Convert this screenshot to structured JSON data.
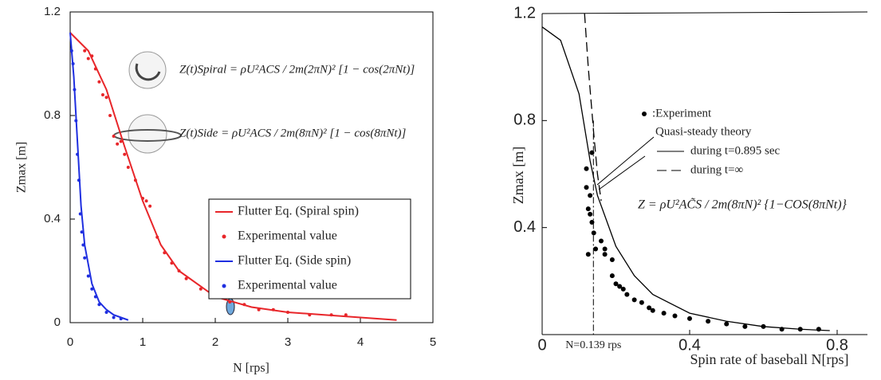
{
  "chart_data": [
    {
      "type": "line",
      "xlabel": "N [rps]",
      "ylabel": "Zmax [m]",
      "xlim": [
        0,
        5
      ],
      "ylim": [
        0,
        1.2
      ],
      "xticks": [
        0,
        1,
        2,
        3,
        4,
        5
      ],
      "yticks": [
        0,
        0.4,
        0.8,
        1.2
      ],
      "annotations": [
        "Z(t)Spiral = ρU²ACS / 2m(2πN)² [1 − cos(2πNt)]",
        "Z(t)Side = ρU²ACS / 2m(8πN)² [1 − cos(8πNt)]"
      ],
      "series": [
        {
          "name": "Flutter Eq. (Spiral spin)",
          "mode": "line",
          "color": "#e8262a",
          "x": [
            0,
            0.25,
            0.5,
            0.75,
            1,
            1.25,
            1.5,
            2,
            2.5,
            3,
            3.5,
            4,
            4.5
          ],
          "values": [
            1.12,
            1.05,
            0.9,
            0.68,
            0.47,
            0.3,
            0.2,
            0.1,
            0.06,
            0.04,
            0.03,
            0.02,
            0.01
          ]
        },
        {
          "name": "Experimental value",
          "mode": "markers",
          "color": "#e8262a",
          "x": [
            0.2,
            0.25,
            0.3,
            0.35,
            0.4,
            0.45,
            0.5,
            0.55,
            0.6,
            0.65,
            0.7,
            0.75,
            0.8,
            0.9,
            1.0,
            1.05,
            1.1,
            1.2,
            1.3,
            1.4,
            1.5,
            1.6,
            1.8,
            2.0,
            2.2,
            2.4,
            2.6,
            2.8,
            3.0,
            3.3,
            3.6,
            3.8
          ],
          "values": [
            1.05,
            1.02,
            1.03,
            0.98,
            0.93,
            0.88,
            0.87,
            0.8,
            0.72,
            0.69,
            0.7,
            0.65,
            0.6,
            0.55,
            0.48,
            0.47,
            0.45,
            0.33,
            0.27,
            0.23,
            0.2,
            0.17,
            0.13,
            0.1,
            0.08,
            0.07,
            0.05,
            0.05,
            0.04,
            0.03,
            0.03,
            0.03
          ]
        },
        {
          "name": "Flutter Eq. (Side spin)",
          "mode": "line",
          "color": "#1f2fe0",
          "x": [
            0,
            0.05,
            0.1,
            0.15,
            0.2,
            0.3,
            0.4,
            0.5,
            0.6,
            0.8
          ],
          "values": [
            1.12,
            0.95,
            0.7,
            0.45,
            0.3,
            0.15,
            0.08,
            0.05,
            0.03,
            0.01
          ]
        },
        {
          "name": "Experimental value",
          "mode": "markers",
          "color": "#1f2fe0",
          "x": [
            0.02,
            0.04,
            0.06,
            0.08,
            0.1,
            0.12,
            0.14,
            0.16,
            0.18,
            0.2,
            0.25,
            0.3,
            0.35,
            0.4,
            0.5,
            0.6,
            0.7
          ],
          "values": [
            1.05,
            1.0,
            0.9,
            0.78,
            0.65,
            0.55,
            0.42,
            0.35,
            0.3,
            0.25,
            0.18,
            0.13,
            0.1,
            0.07,
            0.04,
            0.02,
            0.015
          ]
        }
      ]
    },
    {
      "type": "line",
      "xlabel": "Spin rate of baseball N[rps]",
      "ylabel": "Zmax [m]",
      "xlim": [
        0,
        0.8
      ],
      "ylim": [
        0,
        1.2
      ],
      "xticks": [
        0,
        0.4,
        0.8
      ],
      "yticks": [
        0.4,
        0.8,
        1.2
      ],
      "legend_title": "Quasi-steady theory",
      "annotations": [
        "Z = ρU²AC̃S / 2m(8πN)² {1−COS(8πNt)}"
      ],
      "reference_line": {
        "x": 0.139,
        "label": "N=0.139 rps"
      },
      "series": [
        {
          "name": ":Experiment",
          "mode": "markers",
          "color": "#000000",
          "x": [
            0.12,
            0.12,
            0.125,
            0.13,
            0.13,
            0.135,
            0.135,
            0.14,
            0.145,
            0.125,
            0.16,
            0.17,
            0.17,
            0.19,
            0.19,
            0.2,
            0.21,
            0.22,
            0.23,
            0.25,
            0.27,
            0.29,
            0.3,
            0.33,
            0.36,
            0.4,
            0.45,
            0.5,
            0.55,
            0.6,
            0.65,
            0.7,
            0.75
          ],
          "values": [
            0.62,
            0.55,
            0.47,
            0.52,
            0.45,
            0.68,
            0.42,
            0.38,
            0.32,
            0.3,
            0.35,
            0.32,
            0.3,
            0.28,
            0.22,
            0.19,
            0.18,
            0.17,
            0.15,
            0.13,
            0.12,
            0.1,
            0.09,
            0.08,
            0.07,
            0.06,
            0.05,
            0.04,
            0.03,
            0.03,
            0.02,
            0.02,
            0.02
          ]
        },
        {
          "name": "during t=0.895 sec",
          "mode": "line",
          "color": "#000000",
          "x": [
            0,
            0.05,
            0.1,
            0.13,
            0.15,
            0.2,
            0.25,
            0.3,
            0.4,
            0.5,
            0.6,
            0.7,
            0.78
          ],
          "values": [
            1.15,
            1.1,
            0.9,
            0.65,
            0.52,
            0.33,
            0.22,
            0.15,
            0.08,
            0.05,
            0.03,
            0.02,
            0.015
          ]
        },
        {
          "name": "during t=∞",
          "mode": "line",
          "dash": "dashed",
          "color": "#000000",
          "x": [
            0.115,
            0.125,
            0.14,
            0.15,
            0.16
          ],
          "values": [
            1.2,
            1.0,
            0.75,
            0.6,
            0.5
          ]
        }
      ]
    }
  ]
}
